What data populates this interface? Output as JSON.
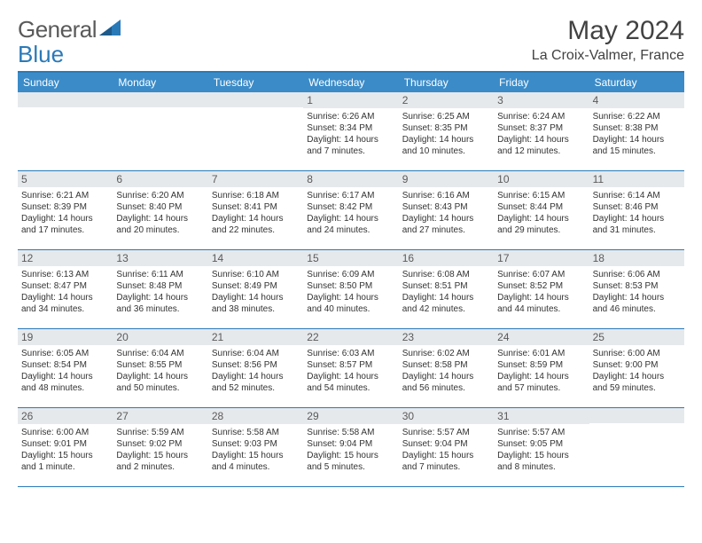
{
  "brand": {
    "part1": "General",
    "part2": "Blue"
  },
  "title": "May 2024",
  "location": "La Croix-Valmer, France",
  "weekdays": [
    "Sunday",
    "Monday",
    "Tuesday",
    "Wednesday",
    "Thursday",
    "Friday",
    "Saturday"
  ],
  "colors": {
    "header_bg": "#3b8bc8",
    "border": "#2a7ab8",
    "daynum_bg": "#e6e9ec",
    "brand_gray": "#5a5a5a",
    "brand_blue": "#2a7ab8"
  },
  "weeks": [
    [
      {
        "empty": true
      },
      {
        "empty": true
      },
      {
        "empty": true
      },
      {
        "num": "1",
        "sunrise": "6:26 AM",
        "sunset": "8:34 PM",
        "daylight": "14 hours and 7 minutes."
      },
      {
        "num": "2",
        "sunrise": "6:25 AM",
        "sunset": "8:35 PM",
        "daylight": "14 hours and 10 minutes."
      },
      {
        "num": "3",
        "sunrise": "6:24 AM",
        "sunset": "8:37 PM",
        "daylight": "14 hours and 12 minutes."
      },
      {
        "num": "4",
        "sunrise": "6:22 AM",
        "sunset": "8:38 PM",
        "daylight": "14 hours and 15 minutes."
      }
    ],
    [
      {
        "num": "5",
        "sunrise": "6:21 AM",
        "sunset": "8:39 PM",
        "daylight": "14 hours and 17 minutes."
      },
      {
        "num": "6",
        "sunrise": "6:20 AM",
        "sunset": "8:40 PM",
        "daylight": "14 hours and 20 minutes."
      },
      {
        "num": "7",
        "sunrise": "6:18 AM",
        "sunset": "8:41 PM",
        "daylight": "14 hours and 22 minutes."
      },
      {
        "num": "8",
        "sunrise": "6:17 AM",
        "sunset": "8:42 PM",
        "daylight": "14 hours and 24 minutes."
      },
      {
        "num": "9",
        "sunrise": "6:16 AM",
        "sunset": "8:43 PM",
        "daylight": "14 hours and 27 minutes."
      },
      {
        "num": "10",
        "sunrise": "6:15 AM",
        "sunset": "8:44 PM",
        "daylight": "14 hours and 29 minutes."
      },
      {
        "num": "11",
        "sunrise": "6:14 AM",
        "sunset": "8:46 PM",
        "daylight": "14 hours and 31 minutes."
      }
    ],
    [
      {
        "num": "12",
        "sunrise": "6:13 AM",
        "sunset": "8:47 PM",
        "daylight": "14 hours and 34 minutes."
      },
      {
        "num": "13",
        "sunrise": "6:11 AM",
        "sunset": "8:48 PM",
        "daylight": "14 hours and 36 minutes."
      },
      {
        "num": "14",
        "sunrise": "6:10 AM",
        "sunset": "8:49 PM",
        "daylight": "14 hours and 38 minutes."
      },
      {
        "num": "15",
        "sunrise": "6:09 AM",
        "sunset": "8:50 PM",
        "daylight": "14 hours and 40 minutes."
      },
      {
        "num": "16",
        "sunrise": "6:08 AM",
        "sunset": "8:51 PM",
        "daylight": "14 hours and 42 minutes."
      },
      {
        "num": "17",
        "sunrise": "6:07 AM",
        "sunset": "8:52 PM",
        "daylight": "14 hours and 44 minutes."
      },
      {
        "num": "18",
        "sunrise": "6:06 AM",
        "sunset": "8:53 PM",
        "daylight": "14 hours and 46 minutes."
      }
    ],
    [
      {
        "num": "19",
        "sunrise": "6:05 AM",
        "sunset": "8:54 PM",
        "daylight": "14 hours and 48 minutes."
      },
      {
        "num": "20",
        "sunrise": "6:04 AM",
        "sunset": "8:55 PM",
        "daylight": "14 hours and 50 minutes."
      },
      {
        "num": "21",
        "sunrise": "6:04 AM",
        "sunset": "8:56 PM",
        "daylight": "14 hours and 52 minutes."
      },
      {
        "num": "22",
        "sunrise": "6:03 AM",
        "sunset": "8:57 PM",
        "daylight": "14 hours and 54 minutes."
      },
      {
        "num": "23",
        "sunrise": "6:02 AM",
        "sunset": "8:58 PM",
        "daylight": "14 hours and 56 minutes."
      },
      {
        "num": "24",
        "sunrise": "6:01 AM",
        "sunset": "8:59 PM",
        "daylight": "14 hours and 57 minutes."
      },
      {
        "num": "25",
        "sunrise": "6:00 AM",
        "sunset": "9:00 PM",
        "daylight": "14 hours and 59 minutes."
      }
    ],
    [
      {
        "num": "26",
        "sunrise": "6:00 AM",
        "sunset": "9:01 PM",
        "daylight": "15 hours and 1 minute."
      },
      {
        "num": "27",
        "sunrise": "5:59 AM",
        "sunset": "9:02 PM",
        "daylight": "15 hours and 2 minutes."
      },
      {
        "num": "28",
        "sunrise": "5:58 AM",
        "sunset": "9:03 PM",
        "daylight": "15 hours and 4 minutes."
      },
      {
        "num": "29",
        "sunrise": "5:58 AM",
        "sunset": "9:04 PM",
        "daylight": "15 hours and 5 minutes."
      },
      {
        "num": "30",
        "sunrise": "5:57 AM",
        "sunset": "9:04 PM",
        "daylight": "15 hours and 7 minutes."
      },
      {
        "num": "31",
        "sunrise": "5:57 AM",
        "sunset": "9:05 PM",
        "daylight": "15 hours and 8 minutes."
      },
      {
        "empty": true
      }
    ]
  ],
  "labels": {
    "sunrise": "Sunrise:",
    "sunset": "Sunset:",
    "daylight": "Daylight:"
  }
}
